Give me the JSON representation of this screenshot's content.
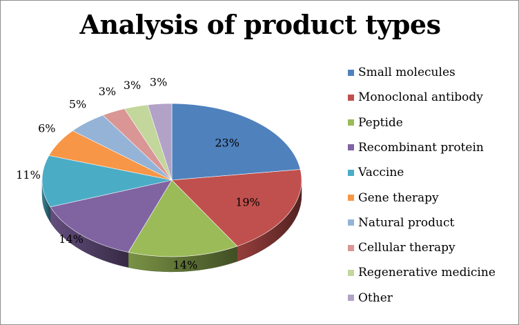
{
  "chart_data": {
    "type": "pie",
    "title": "Analysis of product types",
    "categories": [
      "Small molecules",
      "Monoclonal antibody",
      "Peptide",
      "Recombinant protein",
      "Vaccine",
      "Gene therapy",
      "Natural product",
      "Cellular therapy",
      "Regenerative medicine",
      "Other"
    ],
    "values": [
      23,
      19,
      14,
      14,
      11,
      6,
      5,
      3,
      3,
      3
    ],
    "data_labels": [
      "23%",
      "19%",
      "14%",
      "14%",
      "11%",
      "6%",
      "5%",
      "3%",
      "3%",
      "3%"
    ],
    "colors": [
      "#4f81bd",
      "#c0504d",
      "#9bbb59",
      "#8064a2",
      "#4bacc6",
      "#f79646",
      "#95b3d7",
      "#d99694",
      "#c3d69b",
      "#b2a2c7"
    ],
    "legend_position": "right",
    "style": "3d-pie"
  }
}
